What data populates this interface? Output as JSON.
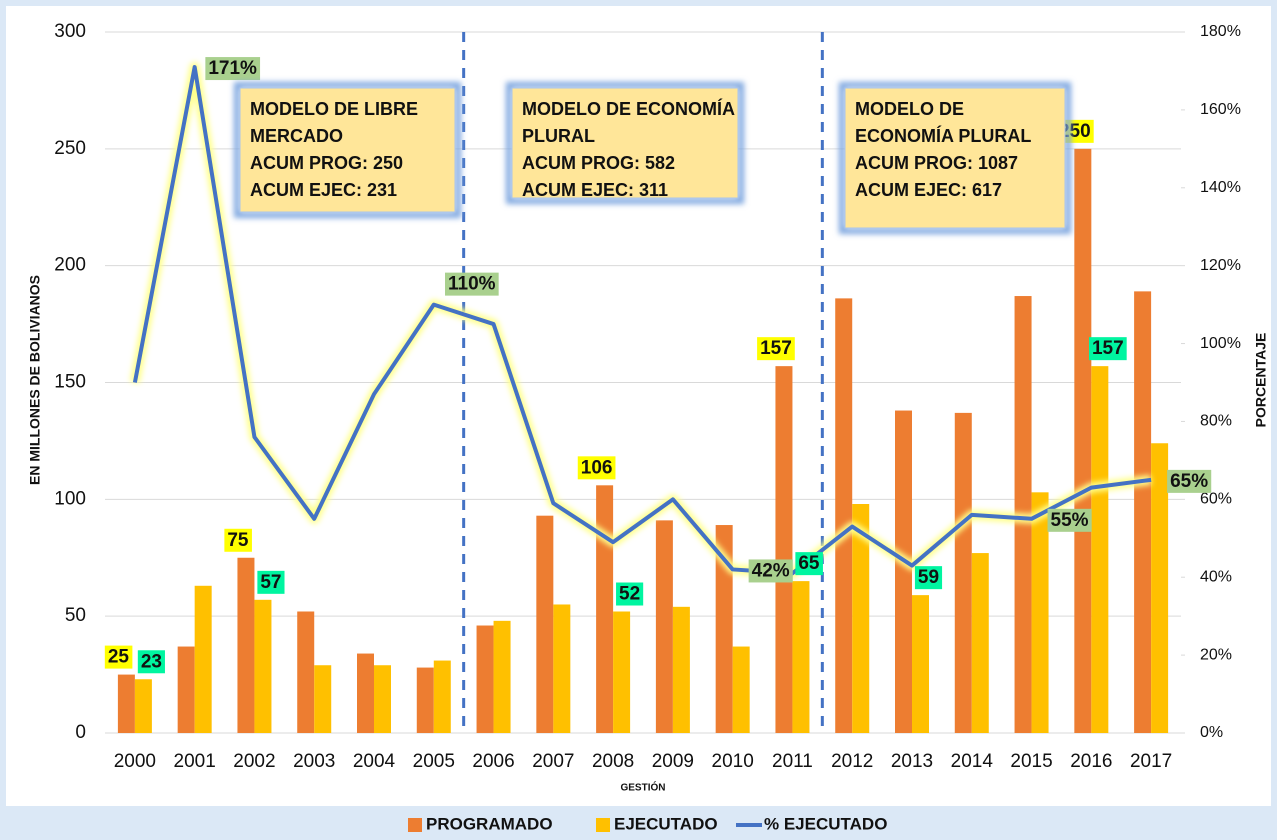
{
  "chart_data": {
    "type": "bar_line",
    "categories": [
      "2000",
      "2001",
      "2002",
      "2003",
      "2004",
      "2005",
      "2006",
      "2007",
      "2008",
      "2009",
      "2010",
      "2011",
      "2012",
      "2013",
      "2014",
      "2015",
      "2016",
      "2017"
    ],
    "series": [
      {
        "name": "PROGRAMADO",
        "color": "#ed7d31",
        "type": "bar",
        "values": [
          25,
          37,
          75,
          52,
          34,
          28,
          46,
          93,
          106,
          91,
          89,
          157,
          186,
          138,
          137,
          187,
          250,
          189
        ],
        "value_labels": [
          "25",
          null,
          "75",
          null,
          null,
          null,
          null,
          null,
          "106",
          null,
          null,
          "157",
          null,
          null,
          null,
          null,
          "250",
          null
        ]
      },
      {
        "name": "EJECUTADO",
        "color": "#ffc000",
        "type": "bar",
        "values": [
          23,
          63,
          57,
          29,
          29,
          31,
          48,
          55,
          52,
          54,
          37,
          65,
          98,
          59,
          77,
          103,
          157,
          124
        ],
        "value_labels": [
          "23",
          null,
          "57",
          null,
          null,
          null,
          null,
          null,
          "52",
          null,
          null,
          "65",
          null,
          "59",
          null,
          null,
          "157",
          null
        ]
      },
      {
        "name": "% EJECUTADO",
        "color": "#4472c4",
        "type": "line",
        "axis": "y2",
        "values": [
          90,
          171,
          76,
          55,
          87,
          110,
          105,
          59,
          49,
          60,
          42,
          41,
          53,
          43,
          56,
          55,
          63,
          65
        ],
        "value_labels": [
          null,
          "171%",
          null,
          null,
          null,
          "110%",
          null,
          null,
          null,
          null,
          "42%",
          null,
          null,
          null,
          null,
          "55%",
          null,
          "65%"
        ]
      }
    ],
    "ylabel": "EN MILLONES DE BOLIVIANOS",
    "y2label": "PORCENTAJE",
    "xlabel": "GESTIÓN",
    "ylim": [
      0,
      300
    ],
    "yticks": [
      0,
      50,
      100,
      150,
      200,
      250,
      300
    ],
    "y2lim": [
      0,
      180
    ],
    "y2ticks": [
      {
        "value": 0,
        "label": "0%"
      },
      {
        "value": 20,
        "label": "20%"
      },
      {
        "value": 40,
        "label": "40%"
      },
      {
        "value": 60,
        "label": "60%"
      },
      {
        "value": 80,
        "label": "80%"
      },
      {
        "value": 100,
        "label": "100%"
      },
      {
        "value": 120,
        "label": "120%"
      },
      {
        "value": 140,
        "label": "140%"
      },
      {
        "value": 160,
        "label": "160%"
      },
      {
        "value": 180,
        "label": "180%"
      }
    ],
    "grid": true,
    "legend": "bottom",
    "annotations": [
      {
        "lines": [
          "MODELO DE LIBRE",
          "MERCADO",
          "ACUM PROG: 250",
          "ACUM EJEC: 231"
        ]
      },
      {
        "lines": [
          "MODELO DE ECONOMÍA",
          "PLURAL",
          "ACUM PROG: 582",
          "ACUM EJEC: 311"
        ]
      },
      {
        "lines": [
          "MODELO DE",
          "ECONOMÍA PLURAL",
          "ACUM PROG: 1087",
          "ACUM EJEC: 617"
        ]
      }
    ]
  }
}
